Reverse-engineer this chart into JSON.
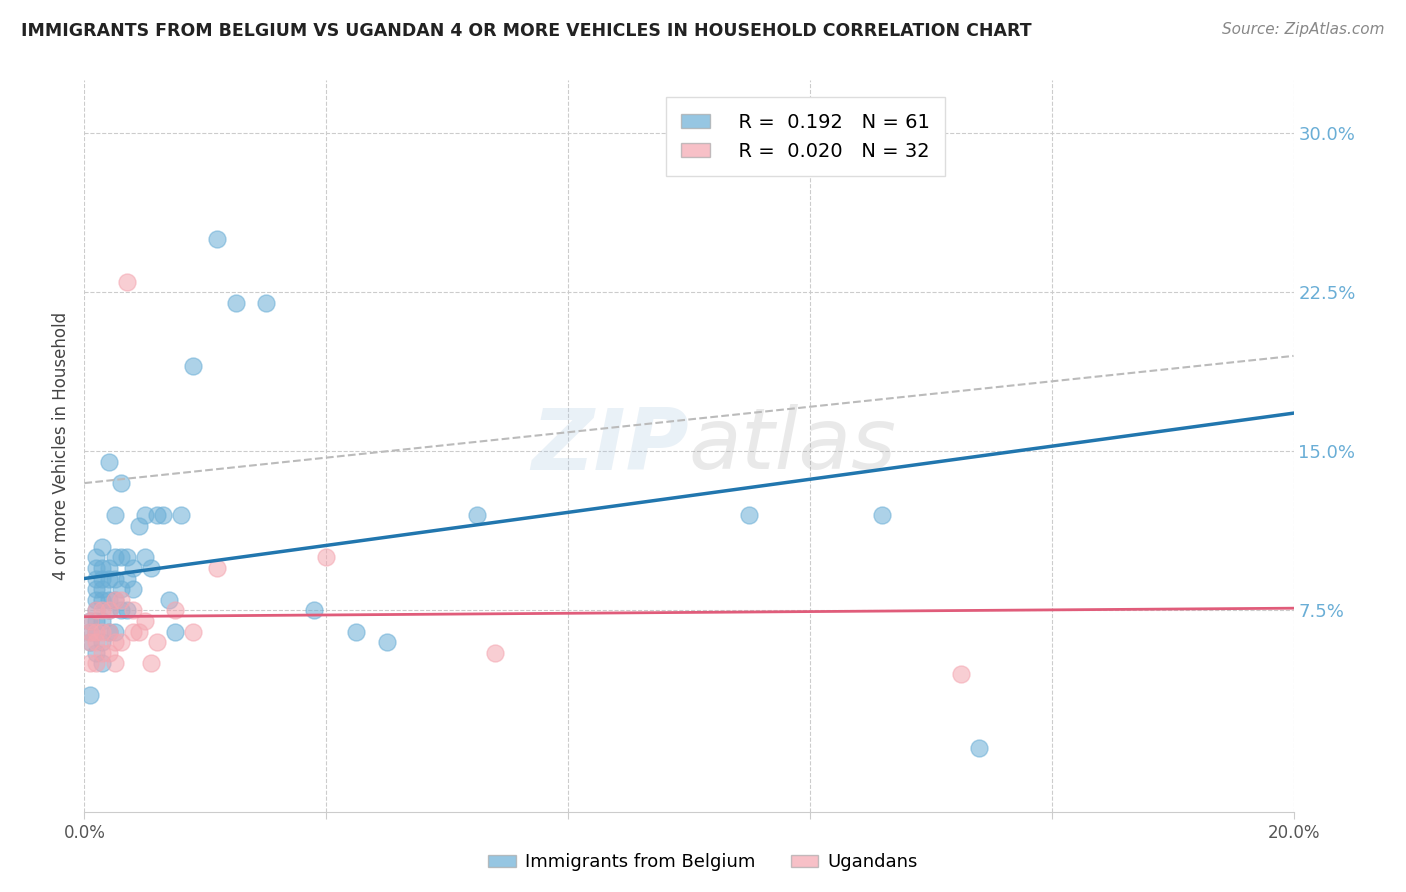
{
  "title": "IMMIGRANTS FROM BELGIUM VS UGANDAN 4 OR MORE VEHICLES IN HOUSEHOLD CORRELATION CHART",
  "source": "Source: ZipAtlas.com",
  "ylabel": "4 or more Vehicles in Household",
  "xlim": [
    0.0,
    0.2
  ],
  "ylim": [
    -0.02,
    0.325
  ],
  "xticks": [
    0.0,
    0.04,
    0.08,
    0.12,
    0.16,
    0.2
  ],
  "xtick_labels": [
    "0.0%",
    "",
    "",
    "",
    "",
    "20.0%"
  ],
  "ytick_positions": [
    0.075,
    0.15,
    0.225,
    0.3
  ],
  "ytick_labels": [
    "7.5%",
    "15.0%",
    "22.5%",
    "30.0%"
  ],
  "belgium_R": 0.192,
  "belgium_N": 61,
  "ugandan_R": 0.02,
  "ugandan_N": 32,
  "belgium_color": "#6aaed6",
  "ugandan_color": "#f4a6b0",
  "belgium_line_color": "#2176ae",
  "ugandan_line_color": "#e05c7a",
  "dashed_line_color": "#bbbbbb",
  "watermark_color": "#aac8e0",
  "background_color": "#ffffff",
  "grid_color": "#cccccc",
  "belgium_x": [
    0.001,
    0.001,
    0.001,
    0.001,
    0.002,
    0.002,
    0.002,
    0.002,
    0.002,
    0.002,
    0.002,
    0.002,
    0.002,
    0.003,
    0.003,
    0.003,
    0.003,
    0.003,
    0.003,
    0.003,
    0.003,
    0.004,
    0.004,
    0.004,
    0.004,
    0.004,
    0.004,
    0.005,
    0.005,
    0.005,
    0.005,
    0.005,
    0.006,
    0.006,
    0.006,
    0.006,
    0.007,
    0.007,
    0.007,
    0.008,
    0.008,
    0.009,
    0.01,
    0.01,
    0.011,
    0.012,
    0.013,
    0.014,
    0.015,
    0.016,
    0.018,
    0.022,
    0.025,
    0.03,
    0.038,
    0.045,
    0.05,
    0.065,
    0.11,
    0.132,
    0.148
  ],
  "belgium_y": [
    0.06,
    0.065,
    0.07,
    0.035,
    0.055,
    0.065,
    0.07,
    0.075,
    0.08,
    0.085,
    0.09,
    0.095,
    0.1,
    0.05,
    0.06,
    0.07,
    0.08,
    0.085,
    0.09,
    0.095,
    0.105,
    0.065,
    0.075,
    0.08,
    0.09,
    0.095,
    0.145,
    0.065,
    0.08,
    0.09,
    0.1,
    0.12,
    0.075,
    0.085,
    0.1,
    0.135,
    0.075,
    0.09,
    0.1,
    0.085,
    0.095,
    0.115,
    0.1,
    0.12,
    0.095,
    0.12,
    0.12,
    0.08,
    0.065,
    0.12,
    0.19,
    0.25,
    0.22,
    0.22,
    0.075,
    0.065,
    0.06,
    0.12,
    0.12,
    0.12,
    0.01
  ],
  "ugandan_x": [
    0.001,
    0.001,
    0.001,
    0.001,
    0.002,
    0.002,
    0.002,
    0.002,
    0.003,
    0.003,
    0.003,
    0.004,
    0.004,
    0.004,
    0.005,
    0.005,
    0.005,
    0.006,
    0.006,
    0.007,
    0.008,
    0.008,
    0.009,
    0.01,
    0.011,
    0.012,
    0.015,
    0.018,
    0.022,
    0.04,
    0.068,
    0.145
  ],
  "ugandan_y": [
    0.05,
    0.06,
    0.065,
    0.07,
    0.05,
    0.06,
    0.065,
    0.075,
    0.055,
    0.065,
    0.075,
    0.055,
    0.065,
    0.075,
    0.05,
    0.06,
    0.08,
    0.06,
    0.08,
    0.23,
    0.065,
    0.075,
    0.065,
    0.07,
    0.05,
    0.06,
    0.075,
    0.065,
    0.095,
    0.1,
    0.055,
    0.045
  ],
  "belgium_trend_x": [
    0.0,
    0.2
  ],
  "belgium_trend_y": [
    0.09,
    0.168
  ],
  "ugandan_trend_x": [
    0.0,
    0.2
  ],
  "ugandan_trend_y": [
    0.072,
    0.076
  ],
  "dashed_trend_x": [
    0.0,
    0.2
  ],
  "dashed_trend_y": [
    0.135,
    0.195
  ]
}
